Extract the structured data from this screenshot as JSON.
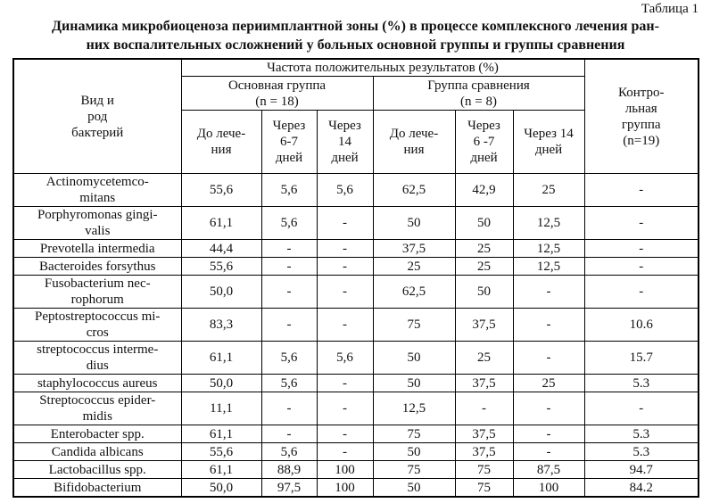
{
  "caption": "Таблица 1",
  "title_line1": "Динамика микробиоценоза периимплантной зоны (%) в процессе комплексного лечения ран-",
  "title_line2": "них воспалительных осложнений у больных основной группы и группы сравнения",
  "chart_data": {
    "type": "table",
    "header": {
      "species": "Вид и\nрод\nбактерий",
      "frequency": "Частота положительных результатов (%)",
      "main_group": "Основная группа\n(n = 18)",
      "comparison_group": "Группа сравнения\n(n = 8)",
      "control_group": "Контро-\nльная\nгруппа\n(n=19)",
      "main_cols": [
        "До лече-\nния",
        "Через\n6-7\nдней",
        "Через\n14\nдней"
      ],
      "comparison_cols": [
        "До лече-\nния",
        "Через\n6 -7\nдней",
        "Через 14\nдней"
      ]
    },
    "rows": [
      {
        "name": "Actinomycetemco-\nmitans",
        "values": [
          "55,6",
          "5,6",
          "5,6",
          "62,5",
          "42,9",
          "25",
          "-"
        ]
      },
      {
        "name": "Porphyromonas gingi-\nvalis",
        "values": [
          "61,1",
          "5,6",
          "-",
          "50",
          "50",
          "12,5",
          "-"
        ]
      },
      {
        "name": "Prevotella intermedia",
        "values": [
          "44,4",
          "-",
          "-",
          "37,5",
          "25",
          "12,5",
          "-"
        ]
      },
      {
        "name": "Bacteroides forsythus",
        "values": [
          "55,6",
          "-",
          "-",
          "25",
          "25",
          "12,5",
          "-"
        ]
      },
      {
        "name": "Fusobacterium nec-\nrophorum",
        "values": [
          "50,0",
          "-",
          "-",
          "62,5",
          "50",
          "-",
          "-"
        ]
      },
      {
        "name": "Peptostreptococcus mi-\ncros",
        "values": [
          "83,3",
          "-",
          "-",
          "75",
          "37,5",
          "-",
          "10.6"
        ]
      },
      {
        "name": "streptococcus interme-\ndius",
        "values": [
          "61,1",
          "5,6",
          "5,6",
          "50",
          "25",
          "-",
          "15.7"
        ]
      },
      {
        "name": "staphylococcus aureus",
        "values": [
          "50,0",
          "5,6",
          "-",
          "50",
          "37,5",
          "25",
          "5.3"
        ]
      },
      {
        "name": "Streptococcus epider-\nmidis",
        "values": [
          "11,1",
          "-",
          "-",
          "12,5",
          "-",
          "-",
          "-"
        ]
      },
      {
        "name": "Enterobacter spp.",
        "values": [
          "61,1",
          "-",
          "-",
          "75",
          "37,5",
          "-",
          "5.3"
        ]
      },
      {
        "name": "Candida albicans",
        "values": [
          "55,6",
          "5,6",
          "-",
          "50",
          "37,5",
          "-",
          "5.3"
        ]
      },
      {
        "name": "Lactobacillus spp.",
        "values": [
          "61,1",
          "88,9",
          "100",
          "75",
          "75",
          "87,5",
          "94.7"
        ]
      },
      {
        "name": "Bifidobacterium",
        "values": [
          "50,0",
          "97,5",
          "100",
          "50",
          "75",
          "100",
          "84.2"
        ]
      }
    ]
  }
}
